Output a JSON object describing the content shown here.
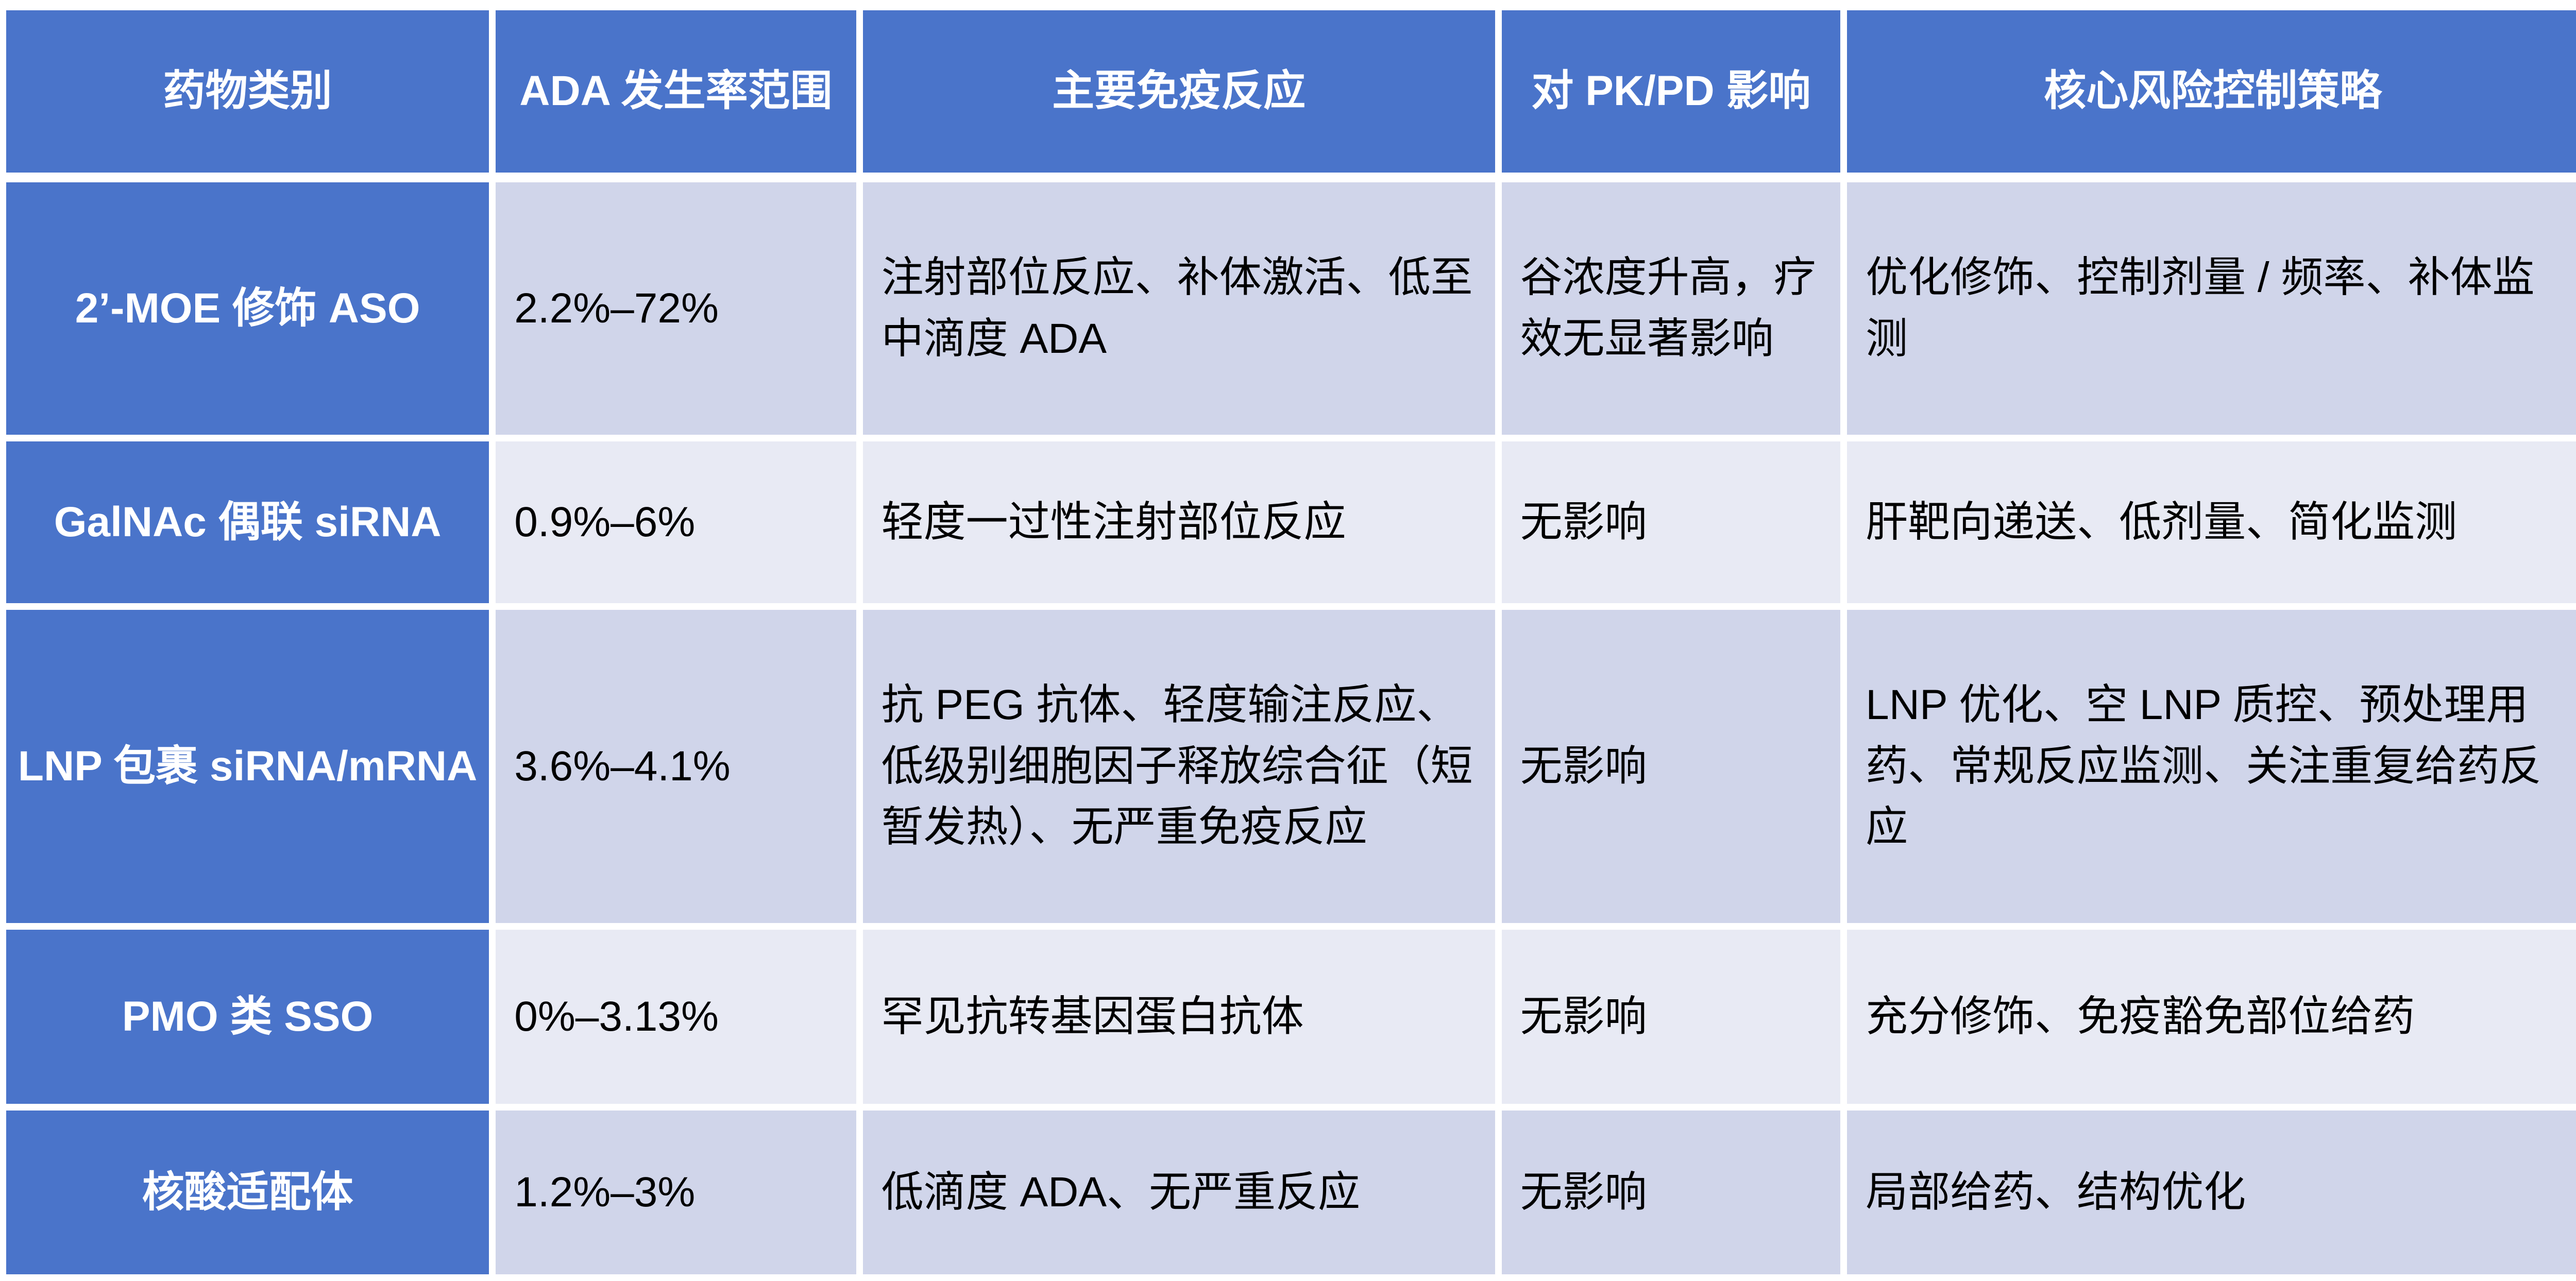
{
  "colors": {
    "header_bg": "#4A74CA",
    "category_column_bg": "#4A74CA",
    "row_odd_bg": "#D0D5EA",
    "row_even_bg": "#E8EAF4",
    "grid_gap": "#FFFFFF",
    "header_text": "#FFFFFF",
    "body_text": "#000000"
  },
  "table": {
    "columns": [
      "药物类别",
      "ADA 发生率范围",
      "主要免疫反应",
      "对 PK/PD 影响",
      "核心风险控制策略"
    ],
    "rows": [
      {
        "cells": [
          "2’-MOE 修饰 ASO",
          "2.2%–72%",
          "注射部位反应、补体激活、低至中滴度 ADA",
          "谷浓度升高，疗效无显著影响",
          "优化修饰、控制剂量 / 频率、补体监测"
        ]
      },
      {
        "cells": [
          "GalNAc 偶联 siRNA",
          "0.9%–6%",
          "轻度一过性注射部位反应",
          "无影响",
          "肝靶向递送、低剂量、简化监测"
        ]
      },
      {
        "cells": [
          "LNP 包裹 siRNA/mRNA",
          "3.6%–4.1%",
          "抗 PEG 抗体、轻度输注反应、低级别细胞因子释放综合征（短暂发热）、无严重免疫反应",
          "无影响",
          "LNP 优化、空 LNP 质控、预处理用药、常规反应监测、关注重复给药反应"
        ]
      },
      {
        "cells": [
          "PMO 类 SSO",
          "0%–3.13%",
          "罕见抗转基因蛋白抗体",
          "无影响",
          "充分修饰、免疫豁免部位给药"
        ]
      },
      {
        "cells": [
          "核酸适配体",
          "1.2%–3%",
          "低滴度 ADA、无严重反应",
          "无影响",
          "局部给药、结构优化"
        ]
      }
    ]
  }
}
